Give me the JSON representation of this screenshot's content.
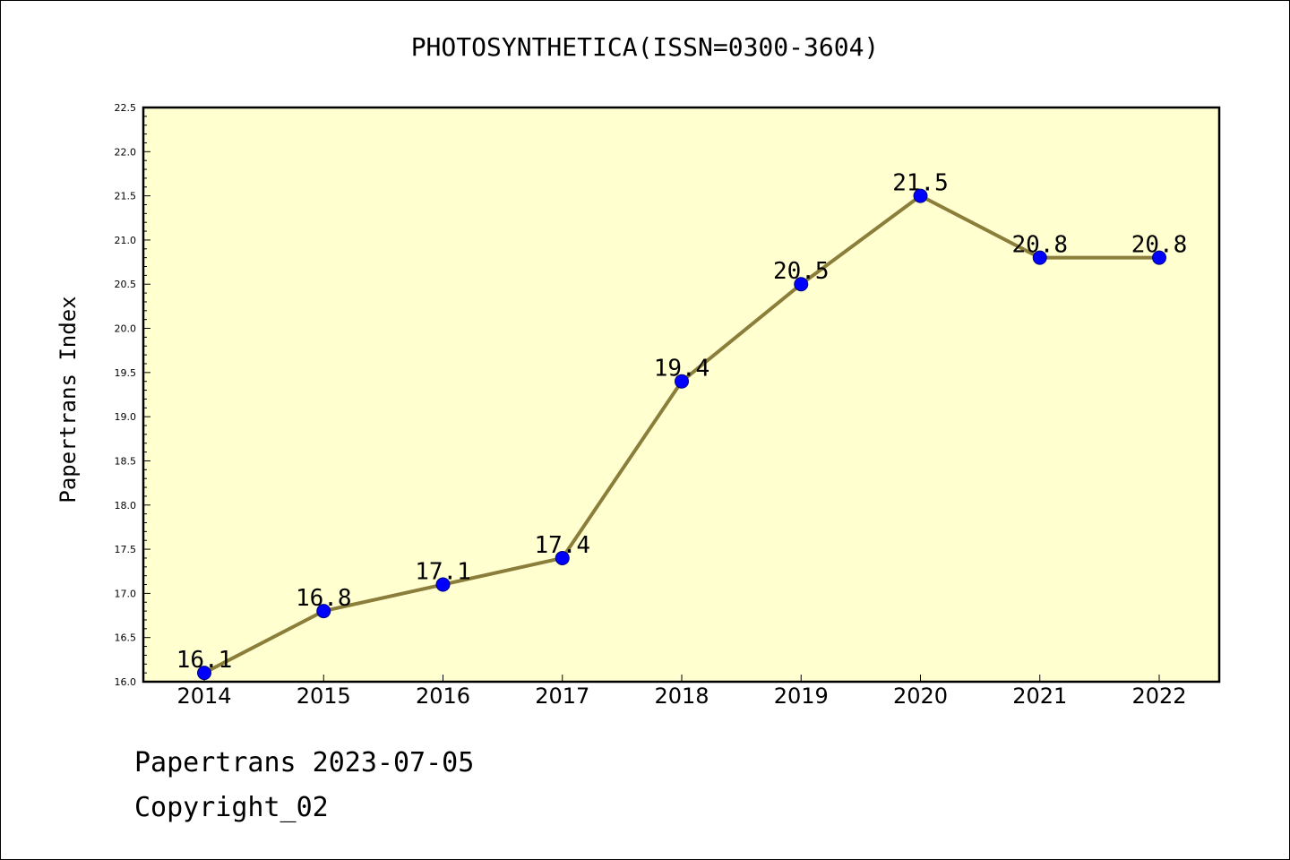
{
  "chart_data": {
    "type": "line",
    "title": "PHOTOSYNTHETICA(ISSN=0300-3604)",
    "xlabel": "",
    "ylabel": "Papertrans Index",
    "categories": [
      "2014",
      "2015",
      "2016",
      "2017",
      "2018",
      "2019",
      "2020",
      "2021",
      "2022"
    ],
    "values": [
      16.1,
      16.8,
      17.1,
      17.4,
      19.4,
      20.5,
      21.5,
      20.8,
      20.8
    ],
    "data_labels": [
      "16.1",
      "16.8",
      "17.1",
      "17.4",
      "19.4",
      "20.5",
      "21.5",
      "20.8",
      "20.8"
    ],
    "ylim": [
      16.0,
      22.5
    ],
    "yticks": [
      "16.0",
      "16.5",
      "17.0",
      "17.5",
      "18.0",
      "18.5",
      "19.0",
      "19.5",
      "20.0",
      "20.5",
      "21.0",
      "21.5",
      "22.0",
      "22.5"
    ],
    "grid": false,
    "legend": "none",
    "colors": {
      "plot_background": "#ffffd0",
      "line": "#8b7d3a",
      "marker_fill": "#0000ff",
      "marker_edge": "#000080",
      "axis": "#000000"
    }
  },
  "footer": {
    "date_line": "Papertrans 2023-07-05",
    "copyright_line": "Copyright_02"
  }
}
